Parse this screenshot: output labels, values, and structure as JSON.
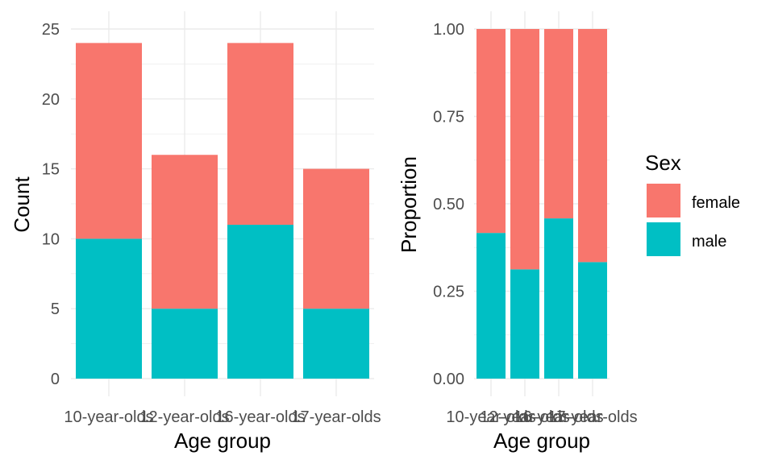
{
  "colors": {
    "female": "#F8766D",
    "male": "#00BFC4",
    "grid": "#EBEBEB"
  },
  "legend": {
    "title": "Sex",
    "items": [
      {
        "label": "female",
        "color": "#F8766D"
      },
      {
        "label": "male",
        "color": "#00BFC4"
      }
    ]
  },
  "chart_data": [
    {
      "type": "bar",
      "stacked": true,
      "categories": [
        "10-year-olds",
        "12-year-olds",
        "16-year-olds",
        "17-year-olds"
      ],
      "series": [
        {
          "name": "male",
          "values": [
            10,
            5,
            11,
            5
          ]
        },
        {
          "name": "female",
          "values": [
            14,
            11,
            13,
            10
          ]
        }
      ],
      "xlabel": "Age group",
      "ylabel": "Count",
      "ylim": [
        0,
        25
      ],
      "yticks": [
        "0",
        "5",
        "10",
        "15",
        "20",
        "25"
      ],
      "grid": true
    },
    {
      "type": "bar",
      "stacked": true,
      "normalized": true,
      "categories": [
        "10-year-olds",
        "12-year-olds",
        "16-year-olds",
        "17-year-olds"
      ],
      "series": [
        {
          "name": "male",
          "values": [
            0.4167,
            0.3125,
            0.4583,
            0.3333
          ]
        },
        {
          "name": "female",
          "values": [
            0.5833,
            0.6875,
            0.5417,
            0.6667
          ]
        }
      ],
      "xlabel": "Age group",
      "ylabel": "Proportion",
      "ylim": [
        0,
        1
      ],
      "yticks": [
        "0.00",
        "0.25",
        "0.50",
        "0.75",
        "1.00"
      ],
      "grid": true,
      "legend_position": "right"
    }
  ]
}
